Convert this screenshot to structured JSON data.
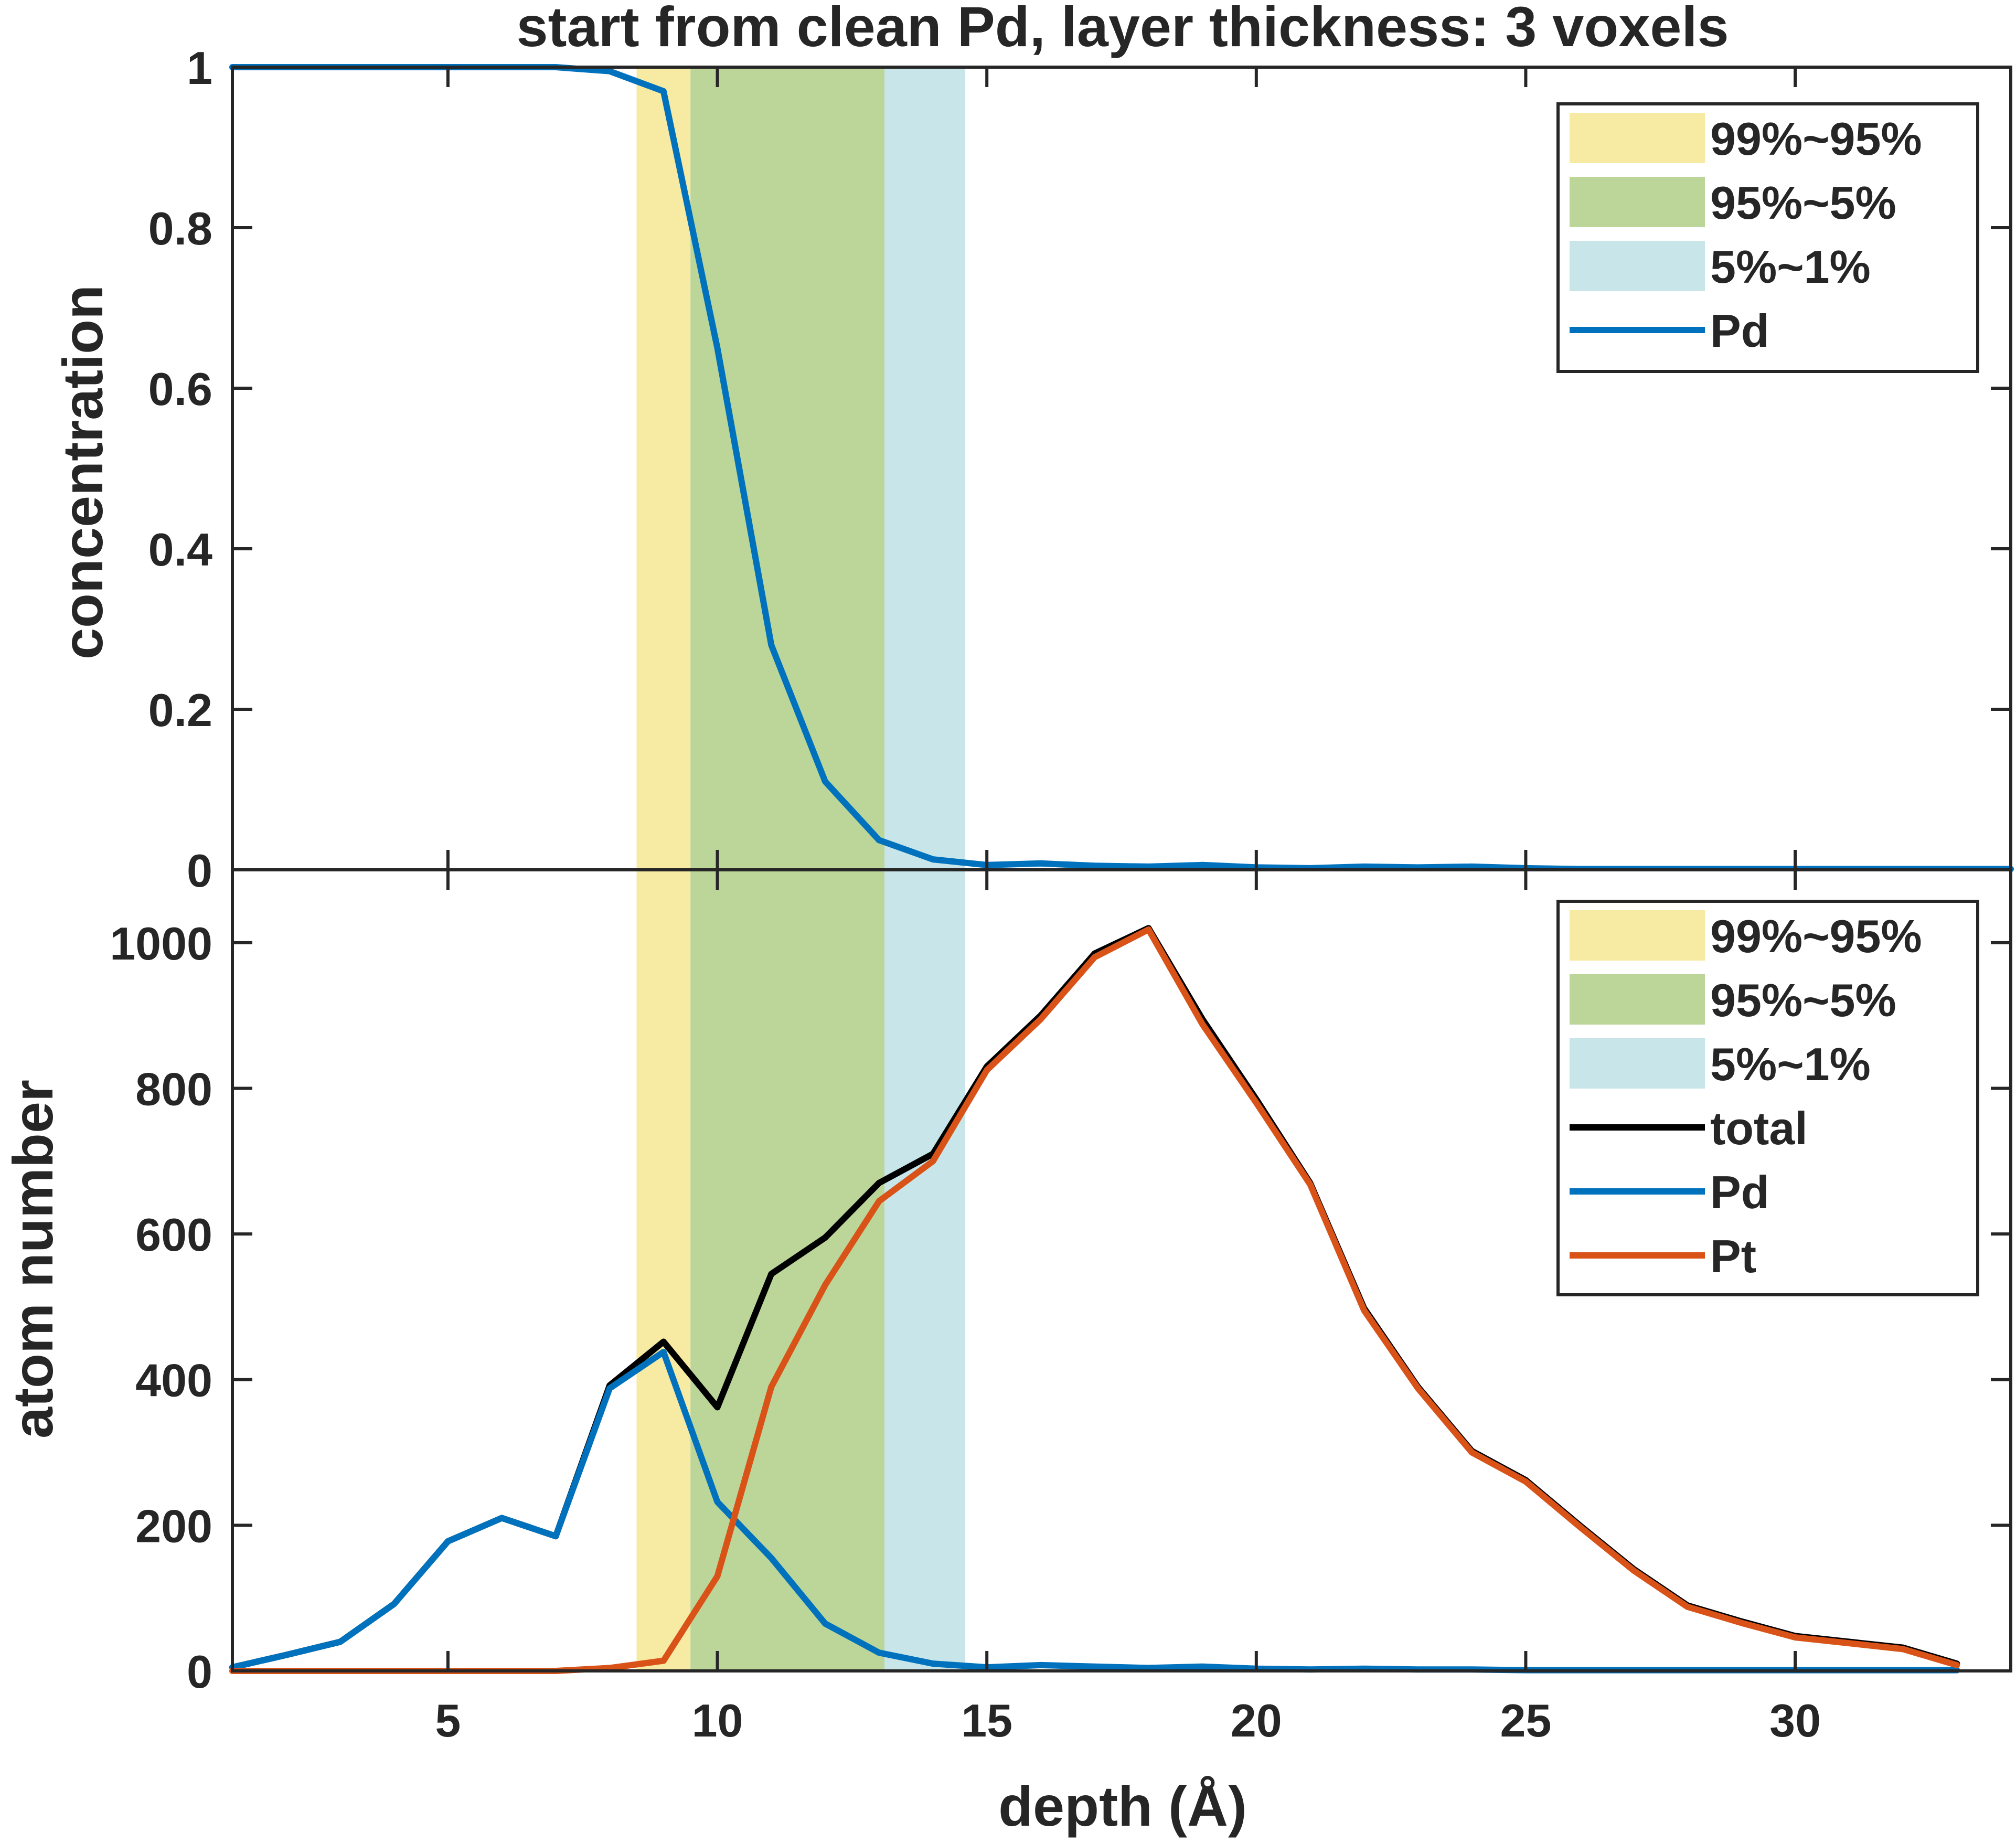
{
  "chart_data": [
    {
      "type": "line",
      "title": "start from clean Pd, layer thickness: 3 voxels",
      "xlabel": "",
      "ylabel": "concentration",
      "xlim": [
        1,
        34
      ],
      "ylim": [
        0,
        1
      ],
      "yticks": [
        "0",
        "0.2",
        "0.4",
        "0.6",
        "0.8",
        "1"
      ],
      "ytick_values": [
        0,
        0.2,
        0.4,
        0.6,
        0.8,
        1
      ],
      "xticks": [
        5,
        10,
        15,
        20,
        25,
        30
      ],
      "grid": false,
      "legend_position": "top-right",
      "bands": [
        {
          "name": "99%~95%",
          "from": 8.5,
          "to": 9.5,
          "color": "#f7eaa3"
        },
        {
          "name": "95%~5%",
          "from": 9.5,
          "to": 13.1,
          "color": "#bcd69a"
        },
        {
          "name": "5%~1%",
          "from": 13.1,
          "to": 14.6,
          "color": "#c8e6e9"
        }
      ],
      "series": [
        {
          "name": "Pd",
          "color": "#0072bd",
          "x": [
            1,
            2,
            3,
            4,
            5,
            6,
            7,
            8,
            9,
            10,
            11,
            12,
            13,
            14,
            15,
            16,
            17,
            18,
            19,
            20,
            21,
            22,
            23,
            24,
            25,
            26,
            27,
            28,
            29,
            30,
            31,
            32,
            33,
            34
          ],
          "y": [
            1,
            1,
            1,
            1,
            1,
            1,
            1,
            0.995,
            0.97,
            0.65,
            0.28,
            0.11,
            0.037,
            0.013,
            0.006,
            0.008,
            0.005,
            0.004,
            0.006,
            0.003,
            0.002,
            0.004,
            0.003,
            0.004,
            0.002,
            0.001,
            0.001,
            0.001,
            0.001,
            0.001,
            0.001,
            0.001,
            0.001,
            0.001
          ]
        }
      ]
    },
    {
      "type": "line",
      "title": "",
      "xlabel": "depth (Å)",
      "ylabel": "atom number",
      "xlim": [
        1,
        34
      ],
      "ylim": [
        0,
        1100
      ],
      "yticks": [
        "0",
        "200",
        "400",
        "600",
        "800",
        "1000"
      ],
      "ytick_values": [
        0,
        200,
        400,
        600,
        800,
        1000
      ],
      "xticks": [
        "5",
        "10",
        "15",
        "20",
        "25",
        "30"
      ],
      "xtick_values": [
        5,
        10,
        15,
        20,
        25,
        30
      ],
      "grid": false,
      "legend_position": "top-right",
      "bands": [
        {
          "name": "99%~95%",
          "from": 8.5,
          "to": 9.5,
          "color": "#f7eaa3"
        },
        {
          "name": "95%~5%",
          "from": 9.5,
          "to": 13.1,
          "color": "#bcd69a"
        },
        {
          "name": "5%~1%",
          "from": 13.1,
          "to": 14.6,
          "color": "#c8e6e9"
        }
      ],
      "series": [
        {
          "name": "total",
          "color": "#000000",
          "x": [
            1,
            2,
            3,
            4,
            5,
            6,
            7,
            8,
            9,
            10,
            11,
            12,
            13,
            14,
            15,
            16,
            17,
            18,
            19,
            20,
            21,
            22,
            23,
            24,
            25,
            26,
            27,
            28,
            29,
            30,
            31,
            32,
            33
          ],
          "y": [
            5,
            22,
            40,
            92,
            178,
            210,
            185,
            392,
            452,
            362,
            545,
            595,
            670,
            710,
            830,
            900,
            985,
            1020,
            895,
            785,
            670,
            498,
            390,
            302,
            262,
            200,
            140,
            90,
            68,
            48,
            40,
            32,
            10
          ]
        },
        {
          "name": "Pd",
          "color": "#0072bd",
          "x": [
            1,
            2,
            3,
            4,
            5,
            6,
            7,
            8,
            9,
            10,
            11,
            12,
            13,
            14,
            15,
            16,
            17,
            18,
            19,
            20,
            21,
            22,
            23,
            24,
            25,
            26,
            27,
            28,
            29,
            30,
            31,
            32,
            33
          ],
          "y": [
            5,
            22,
            40,
            92,
            178,
            210,
            185,
            388,
            438,
            232,
            155,
            65,
            25,
            10,
            5,
            8,
            6,
            4,
            6,
            3,
            2,
            3,
            2,
            2,
            1,
            1,
            1,
            1,
            1,
            1,
            1,
            1,
            1
          ]
        },
        {
          "name": "Pt",
          "color": "#d95319",
          "x": [
            1,
            2,
            3,
            4,
            5,
            6,
            7,
            8,
            9,
            10,
            11,
            12,
            13,
            14,
            15,
            16,
            17,
            18,
            19,
            20,
            21,
            22,
            23,
            24,
            25,
            26,
            27,
            28,
            29,
            30,
            31,
            32,
            33
          ],
          "y": [
            0,
            0,
            0,
            0,
            0,
            0,
            0,
            4,
            14,
            130,
            390,
            530,
            645,
            700,
            825,
            895,
            980,
            1018,
            888,
            780,
            668,
            495,
            388,
            300,
            260,
            198,
            138,
            88,
            66,
            46,
            38,
            30,
            8
          ]
        }
      ]
    }
  ]
}
